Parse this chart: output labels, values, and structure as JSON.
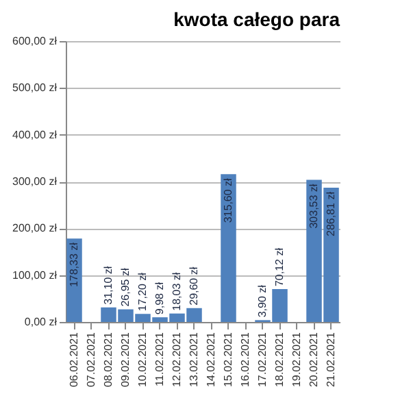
{
  "chart_data": {
    "type": "bar",
    "title": "kwota całego para",
    "categories": [
      "06.02.2021",
      "07.02.2021",
      "08.02.2021",
      "09.02.2021",
      "10.02.2021",
      "11.02.2021",
      "12.02.2021",
      "13.02.2021",
      "14.02.2021",
      "15.02.2021",
      "16.02.2021",
      "17.02.2021",
      "18.02.2021",
      "19.02.2021",
      "20.02.2021",
      "21.02.2021"
    ],
    "values": [
      178.33,
      null,
      31.1,
      26.95,
      17.2,
      9.98,
      18.03,
      29.6,
      null,
      315.6,
      null,
      3.9,
      70.12,
      null,
      303.53,
      286.81
    ],
    "value_labels": [
      "178,33 zł",
      null,
      "31,10 zł",
      "26,95 zł",
      "17,20 zł",
      "9,98 zł",
      "18,03 zł",
      "29,60 zł",
      null,
      "315,60 zł",
      null,
      "3,90 zł",
      "70,12 zł",
      null,
      "303,53 zł",
      "286,81 zł"
    ],
    "color": "#4f81bd",
    "ylim": [
      0,
      600
    ],
    "yticks": [
      {
        "value": 0,
        "label": "0,00 zł"
      },
      {
        "value": 100,
        "label": "100,00 zł"
      },
      {
        "value": 200,
        "label": "200,00 zł"
      },
      {
        "value": 300,
        "label": "300,00 zł"
      },
      {
        "value": 400,
        "label": "400,00 zł"
      },
      {
        "value": 500,
        "label": "500,00 zł"
      },
      {
        "value": 600,
        "label": "600,00 zł"
      }
    ],
    "grid": "y"
  }
}
